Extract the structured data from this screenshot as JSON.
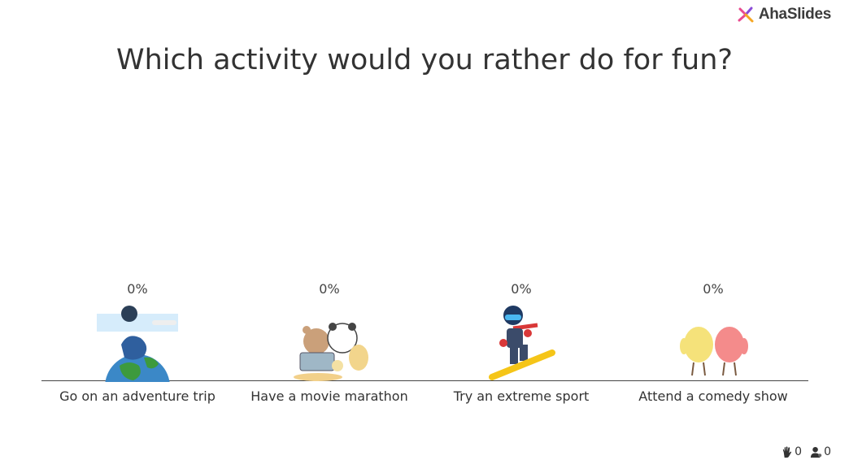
{
  "brand": {
    "name": "AhaSlides",
    "colors": [
      "#e94a8f",
      "#8a4bd7",
      "#f5a623"
    ]
  },
  "question": {
    "title": "Which activity would you rather do for fun?"
  },
  "chart_data": {
    "type": "bar",
    "categories": [
      "Go on an adventure trip",
      "Have a movie marathon",
      "Try an extreme sport",
      "Attend a comedy show"
    ],
    "values": [
      0,
      0,
      0,
      0
    ],
    "value_labels": [
      "0%",
      "0%",
      "0%",
      "0%"
    ],
    "icons": [
      "adventure-globe-icon",
      "movie-marathon-bears-icon",
      "snowboarder-icon",
      "comedy-chicks-icon"
    ]
  },
  "stats": {
    "reactions": "0",
    "participants": "0"
  }
}
